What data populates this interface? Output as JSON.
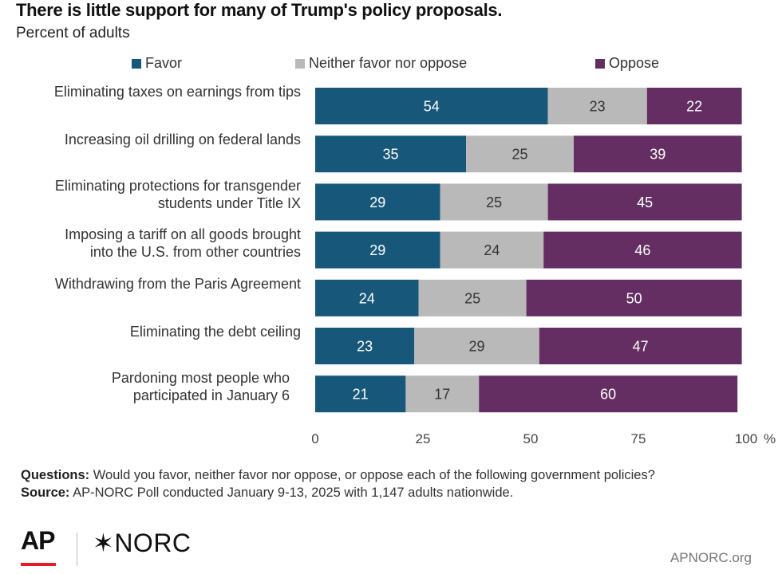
{
  "title": "There is little support for many of Trump's policy proposals.",
  "subtitle": "Percent of adults",
  "colors": {
    "favor": "#17587a",
    "neither": "#b9b9b9",
    "oppose": "#642e63"
  },
  "chart_data": {
    "type": "bar",
    "orientation": "horizontal",
    "stacked": true,
    "categories": [
      [
        "Eliminating taxes on earnings from tips"
      ],
      [
        "Increasing oil drilling on federal lands"
      ],
      [
        "Eliminating protections for transgender",
        "students under Title IX"
      ],
      [
        "Imposing a tariff on all goods brought",
        "into the U.S. from other countries"
      ],
      [
        "Withdrawing from the Paris Agreement"
      ],
      [
        "Eliminating the debt ceiling"
      ],
      [
        "Pardoning most people who",
        "participated in January 6"
      ]
    ],
    "series": [
      {
        "name": "Favor",
        "values": [
          54,
          35,
          29,
          29,
          24,
          23,
          21
        ]
      },
      {
        "name": "Neither favor nor oppose",
        "values": [
          23,
          25,
          25,
          24,
          25,
          29,
          17
        ]
      },
      {
        "name": "Oppose",
        "values": [
          22,
          39,
          45,
          46,
          50,
          47,
          60
        ]
      }
    ],
    "xlim": [
      0,
      100
    ],
    "xticks": [
      "0",
      "25",
      "50",
      "75",
      "100"
    ],
    "x_unit": "%",
    "legend_position": "top",
    "grid": false
  },
  "footer": {
    "questions_label": "Questions:",
    "questions_text": " Would you favor, neither favor nor oppose, or oppose each of the following government policies?",
    "source_label": "Source:",
    "source_text": " AP-NORC Poll conducted January 9-13, 2025 with 1,147 adults nationwide.",
    "logo_ap": "AP",
    "logo_norc": "✶NORC",
    "site": "APNORC.org"
  }
}
